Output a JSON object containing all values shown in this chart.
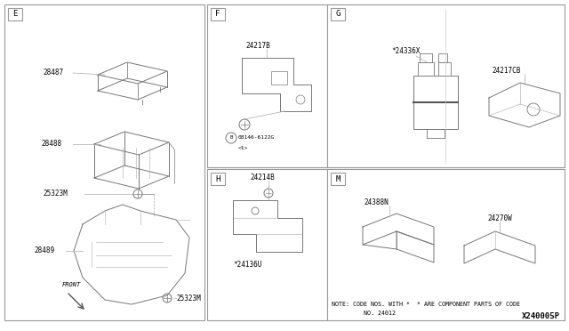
{
  "bg_color": "#ffffff",
  "lc": "#777777",
  "tc": "#000000",
  "fig_w": 6.4,
  "fig_h": 3.72,
  "dpi": 100,
  "note1": "NOTE: CODE NOS. WITH *  * ARE COMPONENT PARTS OF CODE",
  "note2": "         NO. 24012",
  "diagram_id": "X240005P"
}
